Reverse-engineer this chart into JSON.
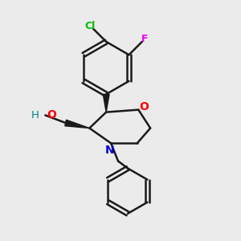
{
  "background_color": "#ebebeb",
  "bond_color": "#1a1a1a",
  "bond_width": 1.8,
  "figsize": [
    3.0,
    3.0
  ],
  "dpi": 100,
  "atom_colors": {
    "O": "#ff0000",
    "N": "#0000cc",
    "Cl": "#00bb00",
    "F": "#ee00ee",
    "H": "#008888"
  }
}
